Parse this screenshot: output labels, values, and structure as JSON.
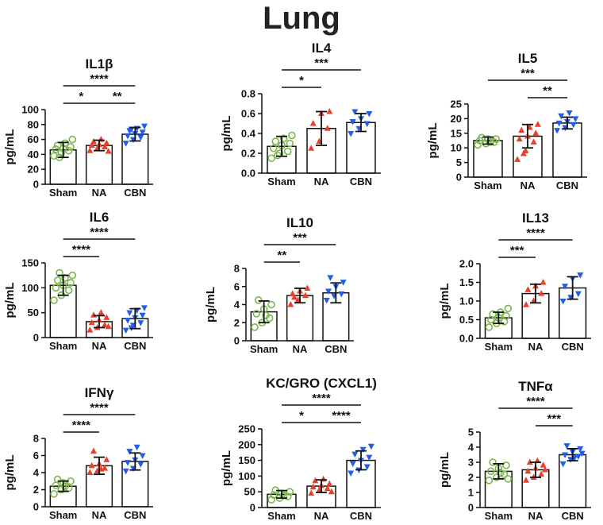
{
  "title": "Lung",
  "colors": {
    "Sham": "#7ab648",
    "NA": "#e8402a",
    "CBN": "#1f5ee8"
  },
  "chart_data": [
    {
      "type": "bar",
      "title": "IL1β",
      "ylabel": "pg/mL",
      "categories": [
        "Sham",
        "NA",
        "CBN"
      ],
      "ylim": [
        0,
        100
      ],
      "yticks": [
        0,
        20,
        40,
        60,
        80,
        100
      ],
      "means": [
        46,
        52,
        67
      ],
      "sd": [
        10,
        7,
        9
      ],
      "points": [
        [
          38,
          42,
          45,
          47,
          48,
          50,
          52,
          55,
          60,
          36
        ],
        [
          45,
          48,
          50,
          52,
          53,
          55,
          57,
          60,
          44
        ],
        [
          55,
          60,
          63,
          65,
          68,
          70,
          72,
          75,
          78,
          74
        ]
      ],
      "significance": [
        {
          "pair": [
            0,
            1
          ],
          "label": "*"
        },
        {
          "pair": [
            1,
            2
          ],
          "label": "**"
        },
        {
          "pair": [
            0,
            2
          ],
          "label": "****"
        }
      ]
    },
    {
      "type": "bar",
      "title": "IL4",
      "ylabel": "pg/mL",
      "categories": [
        "Sham",
        "NA",
        "CBN"
      ],
      "ylim": [
        0,
        0.8
      ],
      "yticks": [
        0.0,
        0.2,
        0.4,
        0.6,
        0.8
      ],
      "means": [
        0.27,
        0.45,
        0.51
      ],
      "sd": [
        0.1,
        0.17,
        0.09
      ],
      "points": [
        [
          0.15,
          0.2,
          0.22,
          0.25,
          0.28,
          0.3,
          0.32,
          0.35,
          0.38,
          0.18
        ],
        [
          0.25,
          0.32,
          0.45,
          0.5,
          0.6,
          0.62
        ],
        [
          0.4,
          0.45,
          0.5,
          0.52,
          0.55,
          0.6,
          0.62
        ]
      ],
      "significance": [
        {
          "pair": [
            0,
            1
          ],
          "label": "*"
        },
        {
          "pair": [
            0,
            2
          ],
          "label": "***"
        }
      ]
    },
    {
      "type": "bar",
      "title": "IL5",
      "ylabel": "pg/mL",
      "categories": [
        "Sham",
        "NA",
        "CBN"
      ],
      "ylim": [
        0,
        25
      ],
      "yticks": [
        0,
        5,
        10,
        15,
        20,
        25
      ],
      "means": [
        12.5,
        14,
        18.5
      ],
      "sd": [
        1.2,
        4,
        2
      ],
      "points": [
        [
          11,
          11.5,
          12,
          12.5,
          13,
          13,
          13.5,
          12
        ],
        [
          6,
          9,
          12,
          13,
          14,
          15,
          16,
          17,
          18,
          8
        ],
        [
          16,
          17,
          18,
          18.5,
          19,
          20,
          21,
          22
        ]
      ],
      "significance": [
        {
          "pair": [
            1,
            2
          ],
          "label": "**"
        },
        {
          "pair": [
            0,
            2
          ],
          "label": "***"
        }
      ]
    },
    {
      "type": "bar",
      "title": "IL6",
      "ylabel": "pg/mL",
      "categories": [
        "Sham",
        "NA",
        "CBN"
      ],
      "ylim": [
        0,
        150
      ],
      "yticks": [
        0,
        50,
        100,
        150
      ],
      "means": [
        105,
        32,
        38
      ],
      "sd": [
        20,
        12,
        20
      ],
      "points": [
        [
          75,
          85,
          95,
          100,
          105,
          110,
          115,
          120,
          125,
          130
        ],
        [
          15,
          20,
          25,
          30,
          35,
          40,
          45,
          50,
          22
        ],
        [
          15,
          25,
          30,
          35,
          40,
          45,
          50,
          55,
          60,
          20
        ]
      ],
      "significance": [
        {
          "pair": [
            0,
            1
          ],
          "label": "****"
        },
        {
          "pair": [
            0,
            2
          ],
          "label": "****"
        }
      ]
    },
    {
      "type": "bar",
      "title": "IL10",
      "ylabel": "pg/mL",
      "categories": [
        "Sham",
        "NA",
        "CBN"
      ],
      "ylim": [
        0,
        8
      ],
      "yticks": [
        0,
        2,
        4,
        6,
        8
      ],
      "means": [
        3.2,
        5.0,
        5.3
      ],
      "sd": [
        1.2,
        0.8,
        1.1
      ],
      "points": [
        [
          1.5,
          2,
          2.5,
          3,
          3.5,
          4,
          4.5,
          2.8
        ],
        [
          4,
          4.5,
          5,
          5.2,
          5.5,
          5.8,
          4.8
        ],
        [
          4.5,
          5,
          5.2,
          5.5,
          6,
          6.5,
          7
        ]
      ],
      "significance": [
        {
          "pair": [
            0,
            1
          ],
          "label": "**"
        },
        {
          "pair": [
            0,
            2
          ],
          "label": "***"
        }
      ]
    },
    {
      "type": "bar",
      "title": "IL13",
      "ylabel": "pg/mL",
      "categories": [
        "Sham",
        "NA",
        "CBN"
      ],
      "ylim": [
        0,
        2.0
      ],
      "yticks": [
        0.0,
        0.5,
        1.0,
        1.5,
        2.0
      ],
      "means": [
        0.55,
        1.2,
        1.35
      ],
      "sd": [
        0.15,
        0.25,
        0.3
      ],
      "points": [
        [
          0.3,
          0.4,
          0.45,
          0.5,
          0.55,
          0.6,
          0.65,
          0.7,
          0.8
        ],
        [
          0.9,
          1.0,
          1.2,
          1.3,
          1.4,
          1.5
        ],
        [
          1.0,
          1.1,
          1.2,
          1.4,
          1.6,
          1.7
        ]
      ],
      "significance": [
        {
          "pair": [
            0,
            1
          ],
          "label": "***"
        },
        {
          "pair": [
            0,
            2
          ],
          "label": "****"
        }
      ]
    },
    {
      "type": "bar",
      "title": "IFNγ",
      "ylabel": "pg/mL",
      "categories": [
        "Sham",
        "NA",
        "CBN"
      ],
      "ylim": [
        0,
        8
      ],
      "yticks": [
        0,
        2,
        4,
        6,
        8
      ],
      "means": [
        2.4,
        4.8,
        5.3
      ],
      "sd": [
        0.6,
        1.0,
        1.0
      ],
      "points": [
        [
          1.5,
          2,
          2.2,
          2.5,
          2.8,
          3,
          3.2,
          2.4
        ],
        [
          4,
          4.2,
          4.5,
          4.8,
          5,
          5.5,
          6.5,
          4.4
        ],
        [
          4.2,
          4.5,
          5,
          5.2,
          5.5,
          6,
          6.5,
          7
        ]
      ],
      "significance": [
        {
          "pair": [
            0,
            1
          ],
          "label": "****"
        },
        {
          "pair": [
            0,
            2
          ],
          "label": "****"
        }
      ]
    },
    {
      "type": "bar",
      "title": "KC/GRO (CXCL1)",
      "ylabel": "pg/mL",
      "categories": [
        "Sham",
        "NA",
        "CBN"
      ],
      "ylim": [
        0,
        250
      ],
      "yticks": [
        0,
        50,
        100,
        150,
        200,
        250
      ],
      "means": [
        42,
        68,
        150
      ],
      "sd": [
        12,
        20,
        30
      ],
      "points": [
        [
          25,
          30,
          35,
          40,
          45,
          50,
          55,
          38
        ],
        [
          45,
          55,
          60,
          65,
          70,
          75,
          85,
          90,
          50
        ],
        [
          110,
          120,
          130,
          140,
          150,
          160,
          170,
          185,
          195
        ]
      ],
      "significance": [
        {
          "pair": [
            0,
            1
          ],
          "label": "*"
        },
        {
          "pair": [
            1,
            2
          ],
          "label": "****"
        },
        {
          "pair": [
            0,
            2
          ],
          "label": "****"
        }
      ]
    },
    {
      "type": "bar",
      "title": "TNFα",
      "ylabel": "pg/mL",
      "categories": [
        "Sham",
        "NA",
        "CBN"
      ],
      "ylim": [
        0,
        5
      ],
      "yticks": [
        0,
        1,
        2,
        3,
        4,
        5
      ],
      "means": [
        2.4,
        2.5,
        3.5
      ],
      "sd": [
        0.5,
        0.5,
        0.4
      ],
      "points": [
        [
          1.8,
          2,
          2.2,
          2.4,
          2.6,
          2.8,
          3,
          2.3,
          1.9
        ],
        [
          1.8,
          2,
          2.2,
          2.4,
          2.6,
          2.8,
          3,
          3.1,
          2.5
        ],
        [
          2.9,
          3.2,
          3.4,
          3.5,
          3.7,
          3.9,
          4.1,
          3.3,
          3.6
        ]
      ],
      "significance": [
        {
          "pair": [
            1,
            2
          ],
          "label": "***"
        },
        {
          "pair": [
            0,
            2
          ],
          "label": "****"
        }
      ]
    }
  ]
}
